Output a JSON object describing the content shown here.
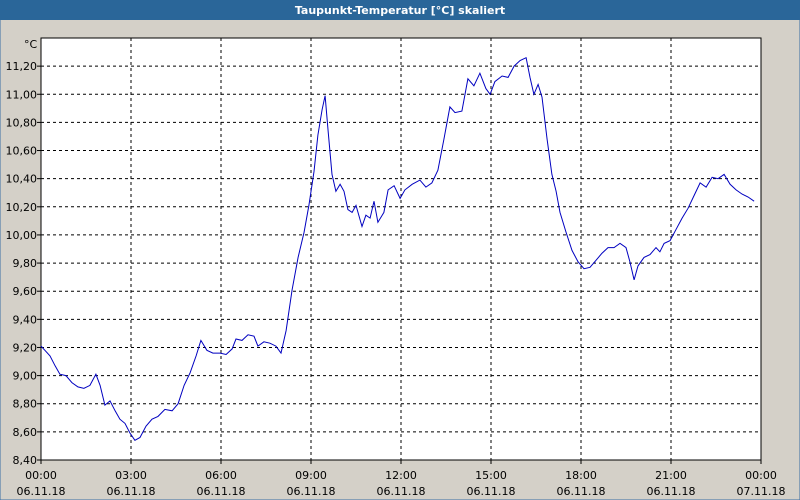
{
  "chart_data": {
    "type": "line",
    "title": "Taupunkt-Temperatur [°C] skaliert",
    "y_label": "°C",
    "xlim": [
      0,
      24
    ],
    "ylim": [
      8.4,
      11.4
    ],
    "grid": true,
    "xticks": [
      {
        "value": 0,
        "label": "00:00"
      },
      {
        "value": 3,
        "label": "03:00"
      },
      {
        "value": 6,
        "label": "06:00"
      },
      {
        "value": 9,
        "label": "09:00"
      },
      {
        "value": 12,
        "label": "12:00"
      },
      {
        "value": 15,
        "label": "15:00"
      },
      {
        "value": 18,
        "label": "18:00"
      },
      {
        "value": 21,
        "label": "21:00"
      },
      {
        "value": 24,
        "label": "00:00"
      }
    ],
    "xtick_dates": [
      "06.11.18",
      "06.11.18",
      "06.11.18",
      "06.11.18",
      "06.11.18",
      "06.11.18",
      "06.11.18",
      "06.11.18",
      "07.11.18"
    ],
    "yticks": [
      {
        "value": 8.4,
        "label": "8,40"
      },
      {
        "value": 8.6,
        "label": "8,60"
      },
      {
        "value": 8.8,
        "label": "8,80"
      },
      {
        "value": 9,
        "label": "9,00"
      },
      {
        "value": 9.2,
        "label": "9,20"
      },
      {
        "value": 9.4,
        "label": "9,40"
      },
      {
        "value": 9.6,
        "label": "9,60"
      },
      {
        "value": 9.8,
        "label": "9,80"
      },
      {
        "value": 10,
        "label": "10,00"
      },
      {
        "value": 10.2,
        "label": "10,20"
      },
      {
        "value": 10.4,
        "label": "10,40"
      },
      {
        "value": 10.6,
        "label": "10,60"
      },
      {
        "value": 10.8,
        "label": "10,80"
      },
      {
        "value": 11,
        "label": "11,00"
      },
      {
        "value": 11.2,
        "label": "11,20"
      }
    ],
    "series": [
      {
        "color": "#0000c0",
        "x": [
          0,
          0.13,
          0.3,
          0.47,
          0.63,
          0.83,
          1.03,
          1.23,
          1.43,
          1.63,
          1.83,
          1.97,
          2.13,
          2.3,
          2.47,
          2.63,
          2.8,
          2.97,
          3.13,
          3.3,
          3.5,
          3.7,
          3.9,
          4.13,
          4.37,
          4.57,
          4.77,
          4.97,
          5.17,
          5.33,
          5.53,
          5.73,
          5.97,
          6.17,
          6.37,
          6.5,
          6.7,
          6.9,
          7.1,
          7.23,
          7.43,
          7.63,
          7.83,
          8,
          8.17,
          8.37,
          8.57,
          8.77,
          8.93,
          9.1,
          9.23,
          9.37,
          9.47,
          9.57,
          9.7,
          9.83,
          9.97,
          10.1,
          10.23,
          10.37,
          10.5,
          10.7,
          10.83,
          10.97,
          11.1,
          11.23,
          11.43,
          11.57,
          11.77,
          11.97,
          12.13,
          12.37,
          12.63,
          12.83,
          13.03,
          13.23,
          13.43,
          13.63,
          13.8,
          14.03,
          14.23,
          14.43,
          14.63,
          14.83,
          14.97,
          15.13,
          15.37,
          15.57,
          15.77,
          15.97,
          16.17,
          16.3,
          16.43,
          16.57,
          16.7,
          16.87,
          17.03,
          17.17,
          17.3,
          17.5,
          17.7,
          17.9,
          18.1,
          18.3,
          18.5,
          18.7,
          18.9,
          19.1,
          19.3,
          19.5,
          19.63,
          19.77,
          19.9,
          20.1,
          20.3,
          20.5,
          20.63,
          20.77,
          20.97,
          21.17,
          21.37,
          21.57,
          21.77,
          21.97,
          22.17,
          22.37,
          22.57,
          22.77,
          22.97,
          23.17,
          23.37,
          23.57,
          23.77
        ],
        "values": [
          9.21,
          9.18,
          9.14,
          9.07,
          9.01,
          9.0,
          8.95,
          8.92,
          8.91,
          8.93,
          9.01,
          8.93,
          8.79,
          8.82,
          8.75,
          8.69,
          8.66,
          8.59,
          8.54,
          8.56,
          8.64,
          8.69,
          8.71,
          8.76,
          8.75,
          8.8,
          8.93,
          9.02,
          9.14,
          9.25,
          9.18,
          9.16,
          9.16,
          9.15,
          9.19,
          9.26,
          9.25,
          9.29,
          9.28,
          9.21,
          9.24,
          9.23,
          9.21,
          9.16,
          9.32,
          9.61,
          9.84,
          10.02,
          10.21,
          10.45,
          10.71,
          10.89,
          10.99,
          10.74,
          10.43,
          10.31,
          10.36,
          10.31,
          10.18,
          10.16,
          10.21,
          10.06,
          10.14,
          10.12,
          10.24,
          10.09,
          10.16,
          10.32,
          10.35,
          10.26,
          10.32,
          10.36,
          10.39,
          10.34,
          10.37,
          10.46,
          10.68,
          10.91,
          10.87,
          10.88,
          11.11,
          11.06,
          11.15,
          11.04,
          11.0,
          11.09,
          11.13,
          11.12,
          11.2,
          11.24,
          11.26,
          11.12,
          11.0,
          11.07,
          10.98,
          10.68,
          10.43,
          10.31,
          10.16,
          10.02,
          9.89,
          9.81,
          9.76,
          9.77,
          9.82,
          9.87,
          9.91,
          9.91,
          9.94,
          9.91,
          9.81,
          9.68,
          9.78,
          9.84,
          9.86,
          9.91,
          9.88,
          9.94,
          9.96,
          10.04,
          10.12,
          10.19,
          10.28,
          10.37,
          10.34,
          10.41,
          10.4,
          10.43,
          10.36,
          10.32,
          10.29,
          10.27,
          10.24
        ]
      }
    ]
  }
}
